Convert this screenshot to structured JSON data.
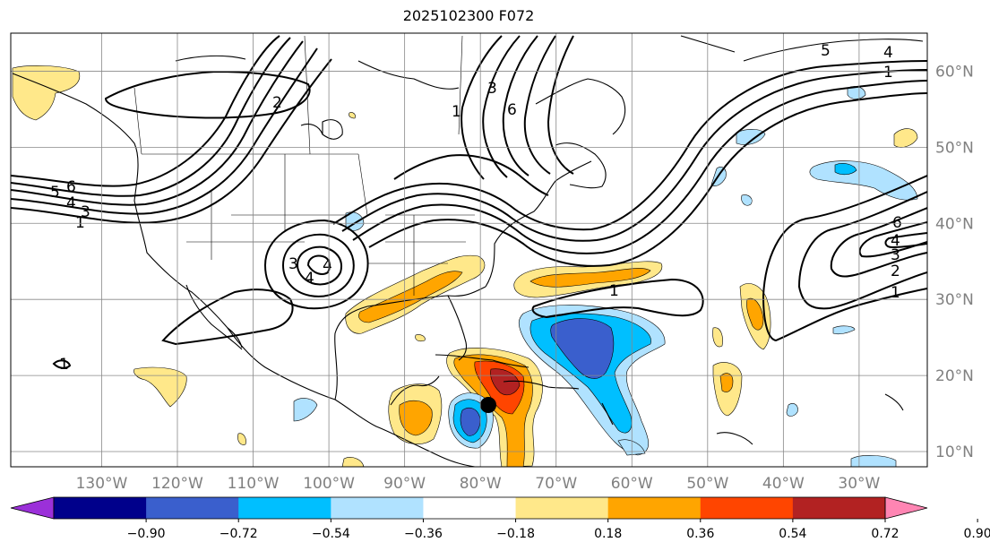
{
  "title": "2025102300 F072",
  "map": {
    "projection": "PlateCarree",
    "lon_range": [
      -142,
      -21
    ],
    "lat_range": [
      8,
      65
    ],
    "gridlines": true,
    "lon_ticks": [
      {
        "value": -130,
        "label": "130°W"
      },
      {
        "value": -120,
        "label": "120°W"
      },
      {
        "value": -110,
        "label": "110°W"
      },
      {
        "value": -100,
        "label": "100°W"
      },
      {
        "value": -90,
        "label": "90°W"
      },
      {
        "value": -80,
        "label": "80°W"
      },
      {
        "value": -70,
        "label": "70°W"
      },
      {
        "value": -60,
        "label": "60°W"
      },
      {
        "value": -50,
        "label": "50°W"
      },
      {
        "value": -40,
        "label": "40°W"
      },
      {
        "value": -30,
        "label": "30°W"
      }
    ],
    "lat_ticks": [
      {
        "value": 60,
        "label": "60°N"
      },
      {
        "value": 50,
        "label": "50°N"
      },
      {
        "value": 40,
        "label": "40°N"
      },
      {
        "value": 30,
        "label": "30°N"
      },
      {
        "value": 20,
        "label": "20°N"
      },
      {
        "value": 10,
        "label": "10°N"
      }
    ],
    "storm_marker": {
      "lon": -76.5,
      "lat": 16.5,
      "symbol": "black-dot"
    },
    "contour_labels": [
      "6",
      "5",
      "4",
      "3",
      "1",
      "2",
      "3",
      "6",
      "1",
      "4",
      "3",
      "4",
      "5",
      "4",
      "1",
      "6",
      "4",
      "3",
      "2",
      "1",
      "1",
      "1"
    ]
  },
  "colorbar": {
    "extend": "both",
    "ticks": [
      "−0.90",
      "−0.72",
      "−0.54",
      "−0.36",
      "−0.18",
      "0.18",
      "0.36",
      "0.54",
      "0.72",
      "0.90"
    ],
    "colors": [
      "#9b30d9",
      "#00008b",
      "#3a5fcd",
      "#00bfff",
      "#b0e2ff",
      "#ffffff",
      "#ffe88a",
      "#ffa500",
      "#ff4500",
      "#b22222",
      "#ff85b3"
    ]
  }
}
